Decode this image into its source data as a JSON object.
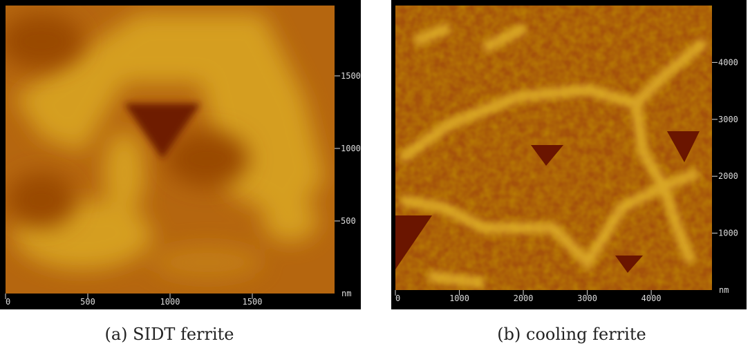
{
  "panels": [
    {
      "caption": "(a) SIDT ferrite",
      "unit": "nm",
      "xticks": [
        0,
        500,
        1000,
        1500
      ],
      "yticks": [
        500,
        1000,
        1500
      ],
      "xlim": [
        0,
        2000
      ],
      "ylim": [
        0,
        1985
      ]
    },
    {
      "caption": "(b) cooling ferrite",
      "unit": "nm",
      "xticks": [
        0,
        1000,
        2000,
        3000,
        4000
      ],
      "yticks": [
        1000,
        2000,
        3000,
        4000
      ],
      "xlim": [
        0,
        4950
      ],
      "ylim": [
        0,
        5000
      ]
    }
  ]
}
